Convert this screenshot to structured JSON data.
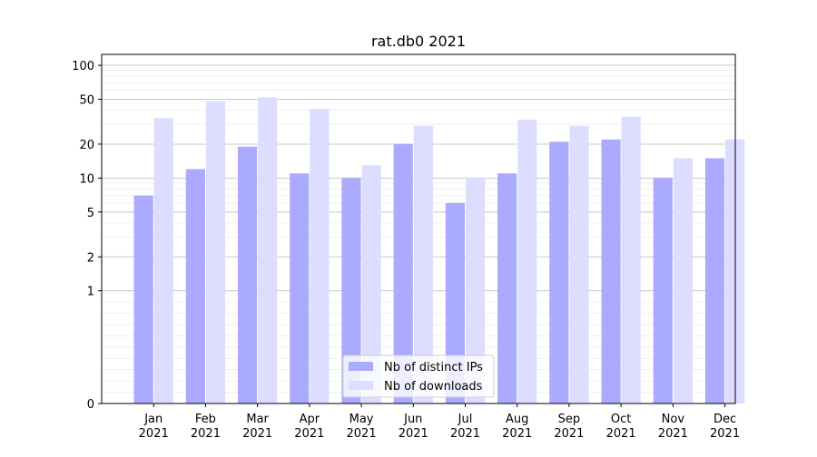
{
  "chart_data": {
    "type": "bar",
    "title": "rat.db0 2021",
    "xlabel": "",
    "ylabel": "",
    "y_scale": "symlog",
    "ylim": [
      0,
      125
    ],
    "y_ticks": [
      {
        "value": 0,
        "label": "0"
      },
      {
        "value": 1,
        "label": "1"
      },
      {
        "value": 2,
        "label": "2"
      },
      {
        "value": 5,
        "label": "5"
      },
      {
        "value": 10,
        "label": "10"
      },
      {
        "value": 20,
        "label": "20"
      },
      {
        "value": 50,
        "label": "50"
      },
      {
        "value": 100,
        "label": "100"
      }
    ],
    "categories": [
      {
        "month": "Jan",
        "year": "2021"
      },
      {
        "month": "Feb",
        "year": "2021"
      },
      {
        "month": "Mar",
        "year": "2021"
      },
      {
        "month": "Apr",
        "year": "2021"
      },
      {
        "month": "May",
        "year": "2021"
      },
      {
        "month": "Jun",
        "year": "2021"
      },
      {
        "month": "Jul",
        "year": "2021"
      },
      {
        "month": "Aug",
        "year": "2021"
      },
      {
        "month": "Sep",
        "year": "2021"
      },
      {
        "month": "Oct",
        "year": "2021"
      },
      {
        "month": "Nov",
        "year": "2021"
      },
      {
        "month": "Dec",
        "year": "2021"
      }
    ],
    "series": [
      {
        "name": "Nb of distinct IPs",
        "color": "#aaaaff",
        "values": [
          7,
          12,
          19,
          11,
          10,
          20,
          6,
          11,
          21,
          22,
          10,
          15
        ]
      },
      {
        "name": "Nb of downloads",
        "color": "#ddddff",
        "values": [
          34,
          48,
          52,
          41,
          13,
          29,
          10,
          33,
          29,
          35,
          15,
          22
        ]
      }
    ],
    "grid": true,
    "legend_position": "bottom-center"
  }
}
